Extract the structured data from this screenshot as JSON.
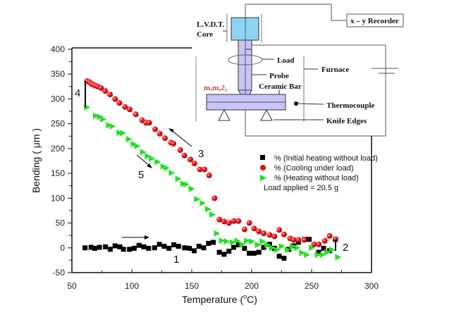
{
  "chart_data": {
    "type": "scatter",
    "xlabel": "Temperature (",
    "xlabel_unit": "C)",
    "xlabel_degree": "o",
    "ylabel": "Bending ( μm )",
    "xlim": [
      50,
      300
    ],
    "ylim": [
      -50,
      400
    ],
    "xticks": [
      50,
      100,
      150,
      200,
      250,
      300
    ],
    "yticks": [
      -50,
      0,
      50,
      100,
      150,
      200,
      250,
      300,
      350,
      400
    ],
    "legend_position": "center-right",
    "series": [
      {
        "name": "% (Initial heating without load)",
        "marker": "square",
        "color": "#000000",
        "x": [
          61,
          66,
          69,
          73,
          78,
          82,
          86,
          90,
          93,
          98,
          102,
          106,
          110,
          114,
          119,
          123,
          127,
          131,
          135,
          139,
          144,
          148,
          152,
          156,
          160,
          164,
          168,
          173,
          177,
          181,
          185,
          189,
          194,
          198,
          202,
          206,
          210,
          215,
          219,
          223,
          227,
          231,
          235,
          239,
          244,
          248,
          256,
          260,
          265,
          270
        ],
        "y": [
          0,
          1,
          -1,
          1,
          2,
          -3,
          4,
          2,
          -3,
          -3,
          -1,
          5,
          2,
          -1,
          0,
          7,
          3,
          -1,
          6,
          3,
          0,
          -1,
          -6,
          3,
          0,
          9,
          11,
          -9,
          -13,
          -7,
          1,
          6,
          -1,
          -11,
          -11,
          -9,
          1,
          7,
          -1,
          -17,
          -21,
          -3,
          4,
          11,
          17,
          17,
          -9,
          -1,
          -6,
          17
        ]
      },
      {
        "name": "% (Cooling under load)",
        "marker": "circle",
        "color": "#e01010",
        "x": [
          62.5,
          64.5,
          66,
          67.5,
          69.4,
          71.4,
          74.3,
          77.8,
          81.8,
          86,
          89.6,
          94.3,
          98.2,
          103.3,
          108.6,
          111.9,
          114.5,
          119.4,
          123.3,
          127.6,
          132.7,
          134.7,
          140.4,
          143.9,
          148.8,
          152.2,
          156.7,
          160.6,
          164.5,
          169,
          173,
          177,
          181,
          185,
          189,
          194,
          198,
          202,
          206,
          210,
          215,
          219,
          223,
          227,
          232,
          235,
          239,
          244,
          252,
          256,
          261,
          265,
          270
        ],
        "y": [
          336,
          334,
          331,
          329,
          327,
          325,
          322,
          316,
          309,
          300,
          292,
          284,
          279,
          269,
          257,
          252,
          252,
          239,
          230,
          221,
          212,
          210,
          197,
          186,
          178,
          170,
          158,
          158,
          146,
          100,
          57,
          53,
          50,
          54,
          54,
          37,
          50,
          39,
          33,
          29,
          26,
          23,
          36,
          27,
          19,
          16,
          16,
          16,
          7,
          7,
          14,
          24,
          17
        ]
      },
      {
        "name": "% (Heating without load)",
        "marker": "triangle-right",
        "color": "#22e022",
        "x": [
          62.5,
          70,
          73.3,
          75.9,
          80.8,
          83.7,
          89.6,
          92.5,
          97.5,
          101.4,
          104.3,
          109.2,
          113.1,
          116.5,
          121.4,
          126.3,
          128.8,
          133.1,
          138.6,
          142.9,
          145.3,
          149.8,
          154.3,
          159,
          163.5,
          167,
          171,
          175,
          179,
          184,
          188,
          192,
          196,
          200,
          205,
          209,
          213,
          217,
          221,
          225,
          230,
          234,
          238,
          242,
          246,
          250,
          255,
          259,
          263,
          267,
          272
        ],
        "y": [
          283,
          266,
          264,
          259,
          247,
          245,
          232,
          231,
          219,
          209,
          205,
          193,
          185,
          180,
          173,
          164,
          161,
          151,
          139,
          129,
          128,
          119,
          98,
          90,
          78,
          67,
          29,
          14,
          13,
          11,
          14,
          7,
          14,
          13,
          6,
          13,
          6,
          0,
          -4,
          3,
          -4,
          3,
          0,
          -10,
          -14,
          0,
          -14,
          -14,
          -9,
          -4,
          -19
        ]
      }
    ],
    "legend_note": "Load applied = 20.5 g",
    "annotations": [
      "1",
      "2",
      "3",
      "4",
      "5"
    ]
  },
  "diagram": {
    "recorder": "x – y Recorder",
    "lvdt_line1": "L.V.D.T.",
    "lvdt_line2": "Core",
    "load": "Load",
    "probe": "Probe",
    "ceramic_bar": "Ceramic Bar",
    "sample": "mₓmᵧ2₂",
    "furnace": "Furnace",
    "thermocouple": "Thermocouple",
    "knife_edges": "Knife Edges"
  }
}
